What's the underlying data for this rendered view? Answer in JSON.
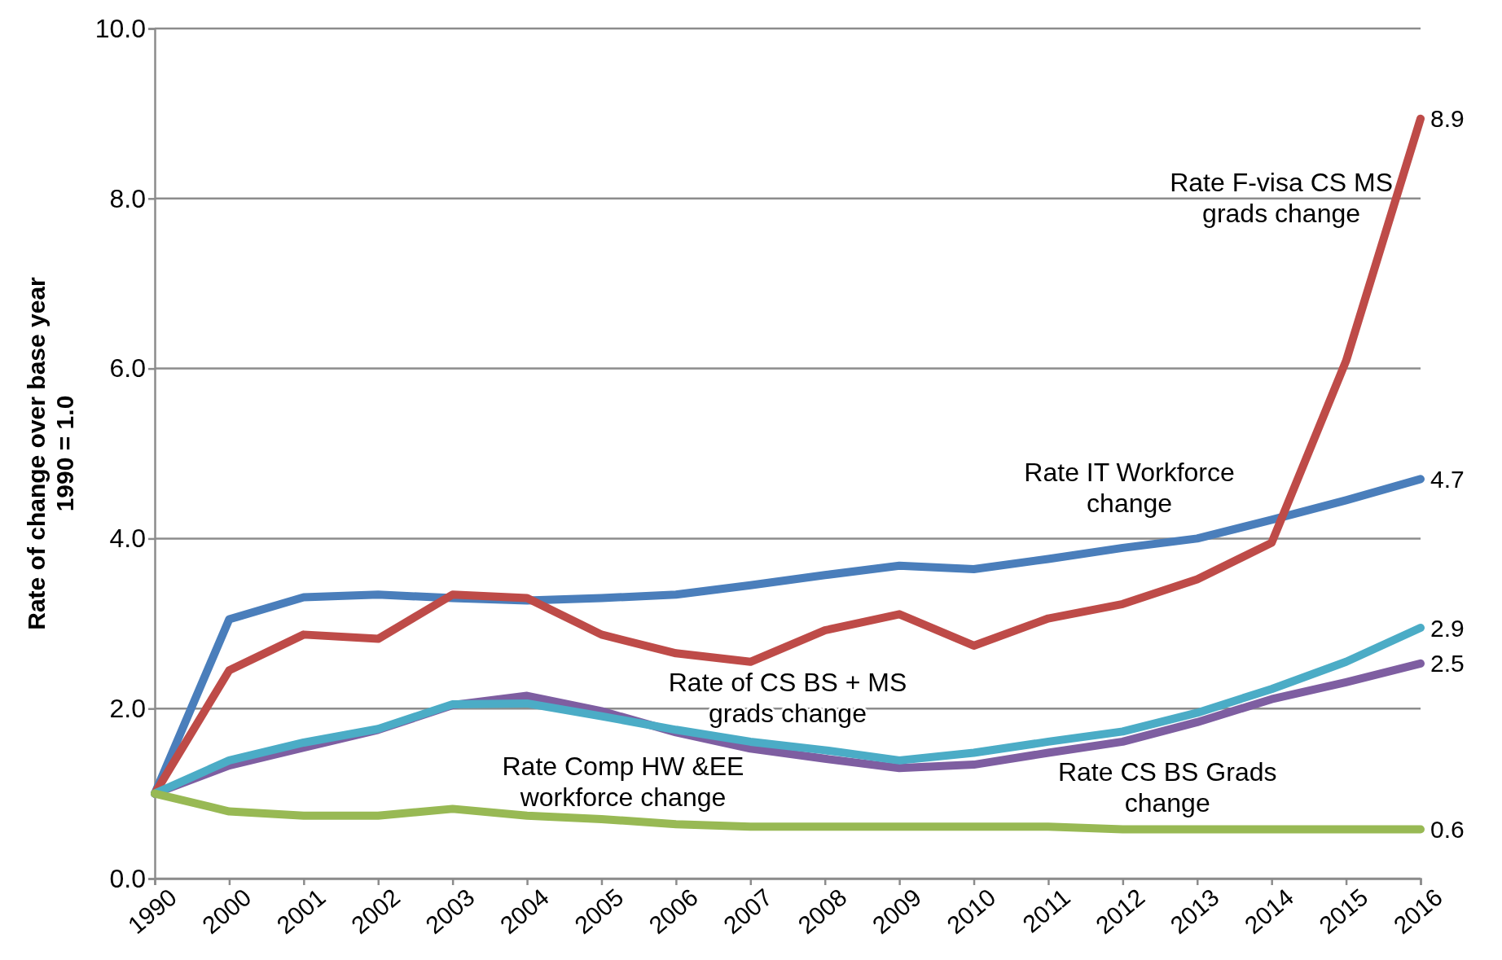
{
  "chart_data": {
    "type": "line",
    "ylabel": "Rate of change over base year\n1990 = 1.0",
    "categories": [
      "1990",
      "2000",
      "2001",
      "2002",
      "2003",
      "2004",
      "2005",
      "2006",
      "2007",
      "2008",
      "2009",
      "2010",
      "2011",
      "2012",
      "2013",
      "2014",
      "2015",
      "2016"
    ],
    "ylim": [
      0,
      10
    ],
    "yticks": [
      {
        "value": 0,
        "label": "0.0"
      },
      {
        "value": 2,
        "label": "2.0"
      },
      {
        "value": 4,
        "label": "4.0"
      },
      {
        "value": 6,
        "label": "6.0"
      },
      {
        "value": 8,
        "label": "8.0"
      },
      {
        "value": 10,
        "label": "10.0"
      }
    ],
    "grid": "y",
    "marker": "none",
    "line_style": "solid",
    "series": [
      {
        "name": "Rate IT Workforce change",
        "color": "#4a7ebb",
        "values": [
          1.0,
          3.05,
          3.31,
          3.34,
          3.3,
          3.27,
          3.3,
          3.34,
          3.45,
          3.57,
          3.68,
          3.64,
          3.76,
          3.89,
          4.0,
          4.22,
          4.45,
          4.7
        ],
        "value_labels": [
          null,
          null,
          null,
          null,
          null,
          null,
          null,
          null,
          null,
          null,
          null,
          null,
          null,
          null,
          null,
          null,
          null,
          "4.7"
        ]
      },
      {
        "name": "Rate F-visa CS MS grads change",
        "color": "#be4b48",
        "values": [
          1.0,
          2.45,
          2.87,
          2.82,
          3.34,
          3.3,
          2.87,
          2.65,
          2.55,
          2.92,
          3.11,
          2.74,
          3.06,
          3.23,
          3.52,
          3.95,
          6.09,
          8.94
        ],
        "value_labels": [
          null,
          null,
          null,
          null,
          null,
          null,
          null,
          null,
          null,
          null,
          null,
          null,
          null,
          null,
          null,
          null,
          null,
          "8.9"
        ]
      },
      {
        "name": "Rate CS BS Grads change",
        "color": "#7e5ea1",
        "values": [
          1.0,
          1.33,
          1.54,
          1.75,
          2.04,
          2.15,
          1.97,
          1.72,
          1.53,
          1.41,
          1.3,
          1.34,
          1.48,
          1.61,
          1.84,
          2.11,
          2.31,
          2.53
        ],
        "value_labels": [
          null,
          null,
          null,
          null,
          null,
          null,
          null,
          null,
          null,
          null,
          null,
          null,
          null,
          null,
          null,
          null,
          null,
          "2.5"
        ]
      },
      {
        "name": "Rate of CS BS + MS grads change",
        "color": "#4bacc6",
        "values": [
          1.0,
          1.39,
          1.6,
          1.76,
          2.05,
          2.06,
          1.91,
          1.75,
          1.61,
          1.51,
          1.39,
          1.48,
          1.61,
          1.73,
          1.95,
          2.23,
          2.55,
          2.95
        ],
        "value_labels": [
          null,
          null,
          null,
          null,
          null,
          null,
          null,
          null,
          null,
          null,
          null,
          null,
          null,
          null,
          null,
          null,
          null,
          "2.9"
        ]
      },
      {
        "name": "Rate Comp HW &EE workforce change",
        "color": "#98b954",
        "values": [
          1.0,
          0.79,
          0.74,
          0.74,
          0.82,
          0.74,
          0.7,
          0.64,
          0.61,
          0.61,
          0.61,
          0.61,
          0.61,
          0.58,
          0.58,
          0.58,
          0.58,
          0.58
        ],
        "value_labels": [
          null,
          null,
          null,
          null,
          null,
          null,
          null,
          null,
          null,
          null,
          null,
          null,
          null,
          null,
          null,
          null,
          null,
          "0.6"
        ]
      }
    ]
  }
}
